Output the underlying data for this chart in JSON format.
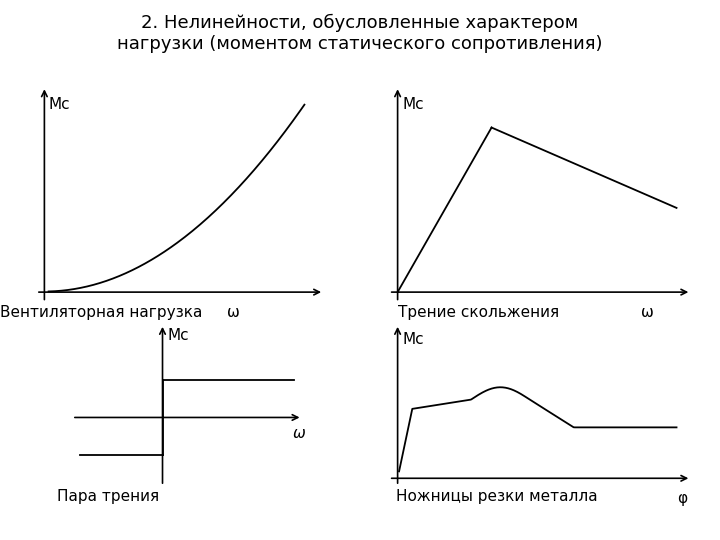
{
  "title_line1": "2. Нелинейности, обусловленные характером",
  "title_line2": "нагрузки (моментом статического сопротивления)",
  "title_fontsize": 13,
  "background_color": "#ffffff",
  "line_color": "#000000",
  "text_color": "#000000",
  "label_fan": "Вентиляторная нагрузка",
  "label_sliding": "Трение скольжения",
  "label_friction": "Пара трения",
  "label_scissors": "Ножницы резки металла",
  "omega": "ω",
  "phi": "φ",
  "mc": "Mc"
}
